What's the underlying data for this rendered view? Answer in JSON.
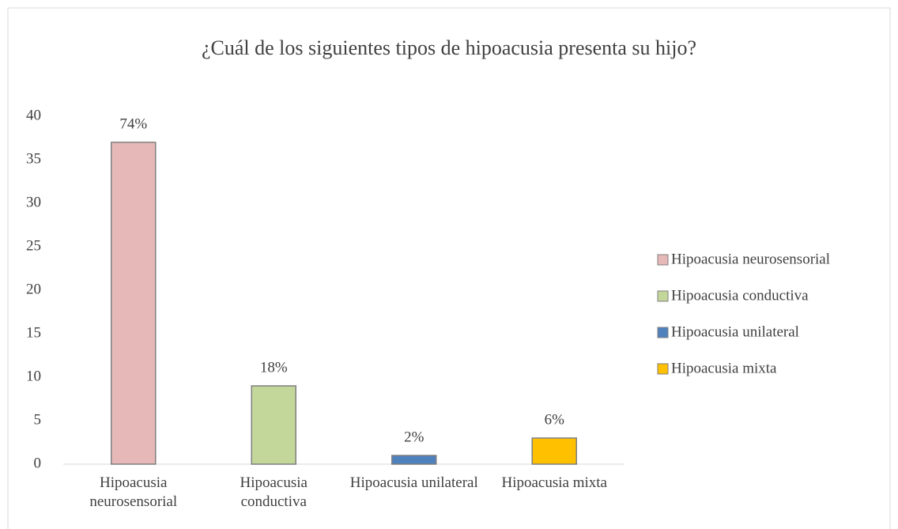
{
  "chart_data": {
    "type": "bar",
    "title": "¿Cuál de los siguientes tipos de hipoacusia presenta su hijo?",
    "categories": [
      "Hipoacusia neurosensorial",
      "Hipoacusia conductiva",
      "Hipoacusia unilateral",
      "Hipoacusia mixta"
    ],
    "values": [
      37,
      9,
      1,
      3
    ],
    "value_labels": [
      "74%",
      "18%",
      "2%",
      "6%"
    ],
    "colors": [
      "#e6b8b7",
      "#c4d79b",
      "#4f81bd",
      "#ffc000"
    ],
    "legend": [
      "Hipoacusia neurosensorial",
      "Hipoacusia conductiva",
      "Hipoacusia unilateral",
      "Hipoacusia mixta"
    ],
    "legend_position": "right",
    "ylim": [
      0,
      40
    ],
    "yticks": [
      0,
      5,
      10,
      15,
      20,
      25,
      30,
      35,
      40
    ],
    "grid": false
  }
}
